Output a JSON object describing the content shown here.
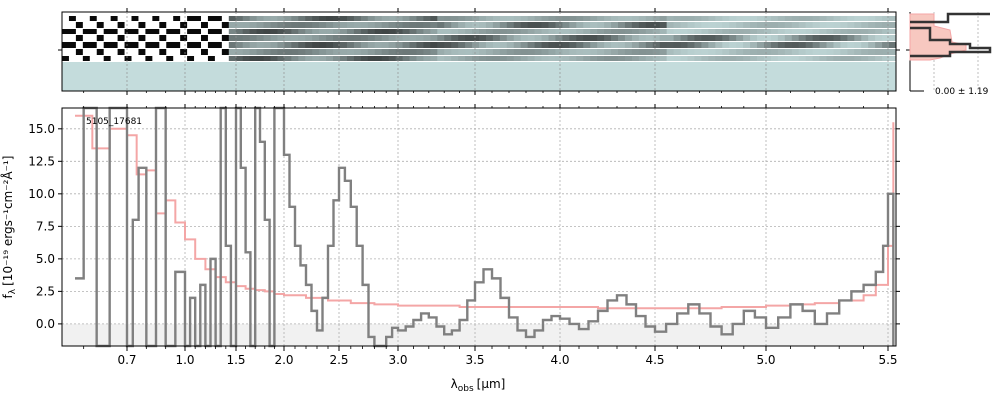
{
  "chart_data": {
    "type": "line",
    "object_id": "5105_17681",
    "xlabel": "λ",
    "xlabel_sub": "obs",
    "xlabel_unit": "[μm]",
    "ylabel": "f",
    "ylabel_sub": "λ",
    "ylabel_unit": "[10⁻¹⁹ ergs⁻¹cm⁻²Å⁻¹]",
    "x_scale": "custom (1D spectrum pixel axis)",
    "xlim": [
      0.55,
      5.53
    ],
    "ylim": [
      -1.7,
      16.6
    ],
    "x_tick_labels": [
      "0.7",
      "1.0",
      "1.5",
      "2.0",
      "2.5",
      "3.0",
      "3.5",
      "4.0",
      "4.5",
      "5.0",
      "5.5"
    ],
    "x_tick_values": [
      0.7,
      1.0,
      1.5,
      2.0,
      2.5,
      3.0,
      3.5,
      4.0,
      4.5,
      5.0,
      5.5
    ],
    "y_ticks": [
      0.0,
      2.5,
      5.0,
      7.5,
      10.0,
      12.5,
      15.0
    ],
    "y_tick_labels": [
      "0.0",
      "2.5",
      "5.0",
      "7.5",
      "10.0",
      "12.5",
      "15.0"
    ],
    "grid": true,
    "series": [
      {
        "color": "#808080",
        "style": "steps",
        "x": [
          0.58,
          0.6,
          0.63,
          0.66,
          0.7,
          0.73,
          0.76,
          0.8,
          0.85,
          0.9,
          0.95,
          1.0,
          1.05,
          1.1,
          1.15,
          1.2,
          1.25,
          1.3,
          1.35,
          1.4,
          1.45,
          1.5,
          1.55,
          1.6,
          1.65,
          1.7,
          1.75,
          1.8,
          1.85,
          1.9,
          1.95,
          2.0,
          2.05,
          2.1,
          2.15,
          2.2,
          2.25,
          2.3,
          2.35,
          2.4,
          2.45,
          2.5,
          2.55,
          2.6,
          2.65,
          2.7,
          2.75,
          2.8,
          2.85,
          2.9,
          2.95,
          3.0,
          3.05,
          3.1,
          3.15,
          3.2,
          3.25,
          3.3,
          3.35,
          3.4,
          3.45,
          3.5,
          3.55,
          3.6,
          3.65,
          3.7,
          3.75,
          3.8,
          3.85,
          3.9,
          3.95,
          4.0,
          4.05,
          4.1,
          4.15,
          4.2,
          4.25,
          4.3,
          4.35,
          4.4,
          4.45,
          4.5,
          4.55,
          4.6,
          4.65,
          4.7,
          4.75,
          4.8,
          4.85,
          4.9,
          4.95,
          5.0,
          5.05,
          5.1,
          5.15,
          5.2,
          5.25,
          5.3,
          5.35,
          5.4,
          5.45,
          5.48,
          5.5,
          5.52
        ],
        "y": [
          3.5,
          16.6,
          -1.7,
          16.6,
          -1.7,
          8.0,
          12.0,
          -1.7,
          16.6,
          -1.7,
          4.0,
          -1.7,
          2.0,
          -1.7,
          3.0,
          -1.7,
          5.0,
          -1.7,
          16.6,
          6.0,
          -1.7,
          16.6,
          12.0,
          5.5,
          -1.7,
          16.6,
          14.0,
          8.0,
          -1.7,
          16.6,
          16.6,
          13.0,
          9.0,
          6.0,
          4.5,
          3.0,
          1.0,
          -0.5,
          2.0,
          6.0,
          9.5,
          12.0,
          11.0,
          9.0,
          6.0,
          3.0,
          -1.0,
          -1.7,
          -1.7,
          -1.0,
          -0.3,
          -0.5,
          -0.2,
          0.3,
          0.8,
          0.5,
          -0.2,
          -0.8,
          -0.5,
          0.3,
          1.8,
          3.2,
          4.2,
          3.5,
          2.0,
          0.5,
          -0.5,
          -1.0,
          -0.5,
          0.3,
          0.6,
          0.4,
          0.0,
          -0.4,
          0.2,
          1.0,
          1.8,
          2.2,
          1.5,
          0.6,
          -0.2,
          -0.6,
          0.0,
          0.8,
          1.5,
          0.8,
          -0.2,
          -0.8,
          0.0,
          1.0,
          0.5,
          -0.3,
          0.5,
          1.5,
          1.0,
          0.0,
          0.8,
          1.8,
          2.5,
          3.0,
          4.0,
          6.0,
          10.0,
          -1.7
        ]
      },
      {
        "color": "#f4a6a6",
        "style": "steps",
        "role": "uncertainty",
        "x": [
          0.58,
          0.62,
          0.66,
          0.7,
          0.75,
          0.8,
          0.85,
          0.9,
          0.95,
          1.0,
          1.1,
          1.2,
          1.3,
          1.4,
          1.5,
          1.6,
          1.7,
          1.8,
          1.9,
          2.0,
          2.2,
          2.4,
          2.6,
          2.8,
          3.0,
          3.2,
          3.4,
          3.6,
          3.8,
          4.0,
          4.2,
          4.4,
          4.6,
          4.8,
          5.0,
          5.1,
          5.2,
          5.3,
          5.4,
          5.45,
          5.5,
          5.52
        ],
        "y": [
          16.0,
          13.5,
          15.0,
          14.5,
          11.5,
          11.8,
          8.5,
          9.5,
          7.8,
          6.5,
          5.0,
          4.2,
          3.6,
          3.2,
          2.9,
          2.7,
          2.6,
          2.5,
          2.3,
          2.2,
          2.0,
          1.8,
          1.6,
          1.5,
          1.4,
          1.4,
          1.3,
          1.3,
          1.3,
          1.3,
          1.2,
          1.2,
          1.2,
          1.3,
          1.4,
          1.5,
          1.6,
          1.8,
          2.2,
          3.0,
          6.0,
          15.5
        ]
      }
    ],
    "side_panel": {
      "label": "0.00 ± 1.19"
    }
  }
}
